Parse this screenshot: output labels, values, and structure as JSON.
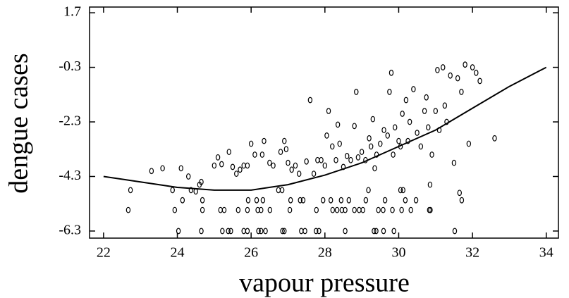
{
  "chart_data": {
    "type": "scatter",
    "xlabel": "vapour pressure",
    "ylabel": "dengue cases",
    "xlim": [
      21.62,
      34.33
    ],
    "ylim": [
      -6.56,
      1.91
    ],
    "xticks": [
      22,
      24,
      26,
      28,
      30,
      32,
      34
    ],
    "yticks": [
      1.7,
      -0.3,
      -2.3,
      -4.3,
      -6.3
    ],
    "series": [
      {
        "type": "scatter",
        "color": "#000000",
        "x": [
          24.03,
          24.65,
          25.22,
          25.38,
          25.45,
          25.8,
          25.9,
          26.2,
          26.27,
          26.39,
          26.85,
          26.9,
          27.36,
          27.46,
          27.76,
          27.84,
          28.55,
          29.33,
          29.39,
          29.59,
          29.87,
          31.52,
          22.67,
          23.93,
          24.68,
          25.17,
          25.27,
          25.65,
          25.9,
          26.18,
          26.27,
          26.51,
          27.05,
          27.77,
          28.21,
          28.33,
          28.46,
          28.55,
          28.8,
          28.93,
          29.03,
          29.45,
          29.58,
          29.83,
          30.08,
          30.33,
          30.83,
          30.86,
          24.14,
          24.68,
          25.92,
          26.15,
          26.32,
          27.07,
          27.33,
          27.41,
          27.95,
          28.16,
          28.44,
          28.65,
          29.11,
          29.63,
          30.18,
          30.47,
          31.71,
          22.73,
          23.87,
          24.37,
          26.74,
          26.84,
          29.18,
          30.05,
          30.12,
          23.3,
          23.6,
          24.1,
          24.3,
          24.5,
          24.6,
          24.65,
          25.0,
          25.1,
          25.2,
          25.4,
          25.5,
          25.6,
          25.7,
          25.8,
          25.9,
          26.0,
          26.1,
          26.3,
          26.35,
          26.5,
          26.6,
          26.8,
          26.9,
          26.95,
          27.0,
          27.1,
          27.2,
          27.3,
          27.5,
          27.6,
          27.7,
          27.8,
          27.9,
          28.0,
          28.05,
          28.1,
          28.2,
          28.3,
          28.35,
          28.4,
          28.5,
          28.6,
          28.7,
          28.8,
          28.85,
          28.9,
          29.0,
          29.1,
          29.2,
          29.25,
          29.3,
          29.35,
          29.4,
          29.5,
          29.6,
          29.7,
          29.75,
          29.8,
          29.85,
          29.9,
          30.0,
          30.05,
          30.1,
          30.2,
          30.25,
          30.3,
          30.4,
          30.5,
          30.6,
          30.7,
          30.75,
          30.8,
          30.85,
          30.9,
          31.0,
          31.05,
          31.1,
          31.2,
          31.25,
          31.3,
          31.4,
          31.5,
          31.6,
          31.65,
          31.7,
          31.8,
          31.9,
          32.0,
          32.1,
          32.2,
          32.6
        ],
        "values": [
          -6.3,
          -6.3,
          -6.3,
          -6.3,
          -6.3,
          -6.3,
          -6.3,
          -6.3,
          -6.3,
          -6.3,
          -6.3,
          -6.3,
          -6.3,
          -6.3,
          -6.3,
          -6.3,
          -6.3,
          -6.3,
          -6.3,
          -6.3,
          -6.3,
          -6.3,
          -5.53,
          -5.53,
          -5.53,
          -5.53,
          -5.53,
          -5.53,
          -5.53,
          -5.53,
          -5.53,
          -5.53,
          -5.53,
          -5.53,
          -5.53,
          -5.53,
          -5.53,
          -5.53,
          -5.53,
          -5.53,
          -5.53,
          -5.53,
          -5.53,
          -5.53,
          -5.53,
          -5.53,
          -5.53,
          -5.53,
          -5.17,
          -5.17,
          -5.17,
          -5.17,
          -5.17,
          -5.17,
          -5.17,
          -5.17,
          -5.17,
          -5.17,
          -5.17,
          -5.17,
          -5.17,
          -5.17,
          -5.17,
          -5.17,
          -5.17,
          -4.8,
          -4.8,
          -4.8,
          -4.8,
          -4.8,
          -4.8,
          -4.8,
          -4.8,
          -4.1,
          -4.0,
          -4.0,
          -4.3,
          -4.85,
          -4.6,
          -4.5,
          -3.9,
          -3.6,
          -3.85,
          -3.4,
          -3.95,
          -4.2,
          -4.05,
          -3.9,
          -3.9,
          -3.1,
          -3.5,
          -3.5,
          -3.0,
          -3.8,
          -3.9,
          -3.4,
          -3.0,
          -3.3,
          -3.8,
          -4.05,
          -3.9,
          -4.2,
          -3.75,
          -1.5,
          -4.2,
          -3.7,
          -3.7,
          -3.9,
          -2.8,
          -1.9,
          -3.2,
          -3.7,
          -2.4,
          -3.1,
          -3.95,
          -3.55,
          -3.7,
          -2.45,
          -1.2,
          -3.6,
          -3.4,
          -3.7,
          -2.9,
          -3.2,
          -2.2,
          -4.0,
          -3.5,
          -3.1,
          -2.6,
          -2.8,
          -1.2,
          -0.5,
          -3.5,
          -2.5,
          -3.0,
          -3.2,
          -2.0,
          -1.5,
          -3.0,
          -2.3,
          -1.1,
          -2.7,
          -3.2,
          -1.9,
          -1.4,
          -2.5,
          -4.6,
          -3.5,
          -1.9,
          -0.4,
          -2.6,
          -0.3,
          -1.7,
          -2.3,
          -0.6,
          -3.8,
          -0.7,
          -4.9,
          -1.2,
          -0.2,
          -3.1,
          -0.3,
          -0.5,
          -0.8,
          -2.9
        ]
      },
      {
        "type": "line",
        "color": "#000000",
        "x": [
          22,
          23,
          24,
          25,
          26,
          27,
          28,
          29,
          30,
          31,
          32,
          33,
          34
        ],
        "values": [
          -4.3,
          -4.5,
          -4.7,
          -4.8,
          -4.8,
          -4.6,
          -4.25,
          -3.8,
          -3.2,
          -2.6,
          -1.8,
          -1.0,
          -0.3
        ]
      }
    ]
  }
}
